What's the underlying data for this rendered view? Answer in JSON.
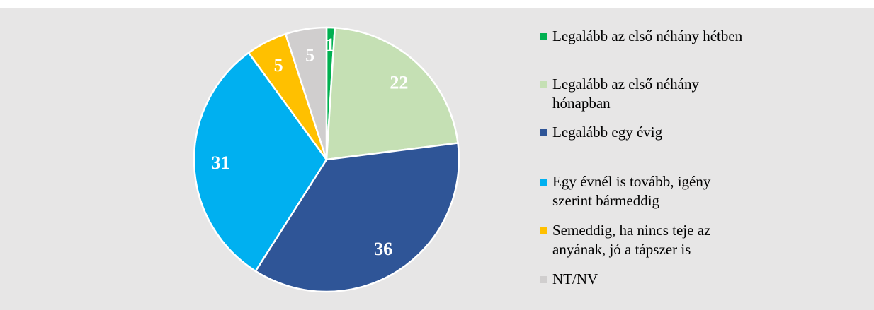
{
  "chart_data": {
    "type": "pie",
    "categories": [
      "Legalább az első néhány hétben",
      "Legalább az első néhány hónapban",
      "Legalább egy évig",
      "Egy évnél is tovább, igény szerint bármeddig",
      "Semeddig, ha nincs teje az anyának, jó a tápszer is",
      "NT/NV"
    ],
    "values": [
      1,
      22,
      36,
      31,
      5,
      5
    ],
    "colors": [
      "#00b050",
      "#c5e0b4",
      "#2f5597",
      "#00b0f0",
      "#ffc000",
      "#d0cece"
    ]
  }
}
